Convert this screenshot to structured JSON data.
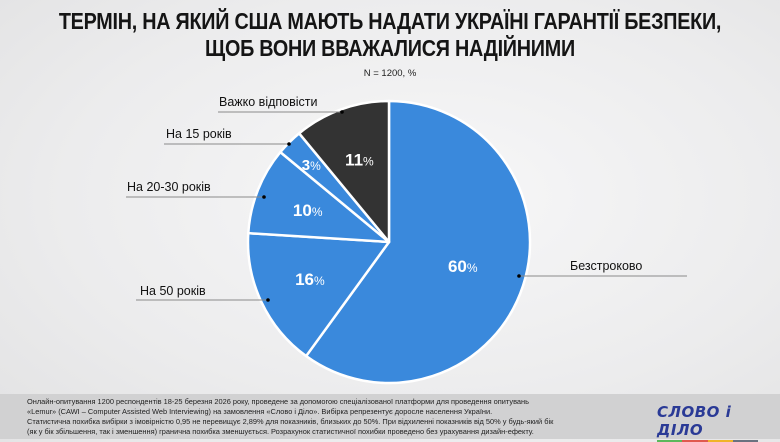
{
  "header": {
    "title_line1": "ТЕРМІН, НА ЯКИЙ США МАЮТЬ НАДАТИ УКРАЇНІ ГАРАНТІЇ БЕЗПЕКИ,",
    "title_line2": "ЩОБ ВОНИ ВВАЖАЛИСЯ НАДІЙНИМИ",
    "subtitle": "N = 1200, %"
  },
  "chart_data": {
    "type": "pie",
    "title": "Термін, на який США мають надати Україні гарантії безпеки, щоб вони вважалися надійними",
    "subtitle": "N = 1200, %",
    "categories": [
      "Безстроково",
      "На 50 років",
      "На 20-30 років",
      "На 15 років",
      "Важко відповісти"
    ],
    "values": [
      60,
      16,
      10,
      3,
      11
    ],
    "labels": [
      "60%",
      "16%",
      "10%",
      "3%",
      "11%"
    ],
    "colors": [
      "#3a89dc",
      "#3a89dc",
      "#3a89dc",
      "#3a89dc",
      "#333333"
    ],
    "start_angle": "12 o'clock, clockwise",
    "legend": "leader-line labels"
  },
  "slices": [
    {
      "label": "Безстроково",
      "value_text": "60",
      "pct": "%"
    },
    {
      "label": "На 50 років",
      "value_text": "16",
      "pct": "%"
    },
    {
      "label": "На 20-30 років",
      "value_text": "10",
      "pct": "%"
    },
    {
      "label": "На 15 років",
      "value_text": "3",
      "pct": "%"
    },
    {
      "label": "Важко відповісти",
      "value_text": "11",
      "pct": "%"
    }
  ],
  "footer": {
    "line1": "Онлайн-опитування 1200 респондентів 18-25 березня 2026 року, проведене за допомогою спеціалізованої платформи для проведення опитувань",
    "line2": "«Lemur» (CAWI – Computer Assisted Web Interviewing) на замовлення «Слово і Діло». Вибірка репрезентує доросле населення України.",
    "line3": "Статистична похибка вибірки з імовірністю 0,95 не перевищує 2,89% для показників, близьких до 50%. При відхиленні показників від 50% у будь-який бік",
    "line4": "(як у бік збільшення, так і зменшення) гранична похибка зменшується. Розрахунок статистичної похибки проведено без урахування дизайн-ефекту."
  },
  "logo": {
    "text": "СЛОВО і ДІЛО",
    "bar_colors": [
      "#5cb85c",
      "#e05a4f",
      "#f0b429",
      "#6b7280"
    ]
  }
}
